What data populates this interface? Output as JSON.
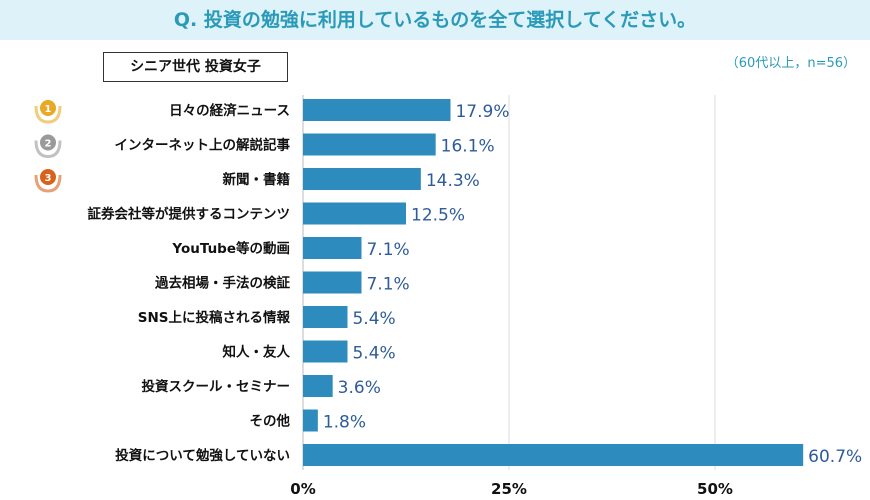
{
  "chart_data": {
    "type": "bar",
    "orientation": "horizontal",
    "title": "Q. 投資の勉強に利用しているものを全て選択してください。",
    "subtitle": "シニア世代 投資女子",
    "note": "（60代以上，n=56）",
    "categories": [
      "日々の経済ニュース",
      "インターネット上の解説記事",
      "新聞・書籍",
      "証券会社等が提供するコンテンツ",
      "YouTube等の動画",
      "過去相場・手法の検証",
      "SNS上に投稿される情報",
      "知人・友人",
      "投資スクール・セミナー",
      "その他",
      "投資について勉強していない"
    ],
    "values": [
      17.9,
      16.1,
      14.3,
      12.5,
      7.1,
      7.1,
      5.4,
      5.4,
      3.6,
      1.8,
      60.7
    ],
    "value_labels": [
      "17.9%",
      "16.1%",
      "14.3%",
      "12.5%",
      "7.1%",
      "7.1%",
      "5.4%",
      "5.4%",
      "3.6%",
      "1.8%",
      "60.7%"
    ],
    "xticks": [
      0,
      25,
      50
    ],
    "xtick_labels": [
      "0%",
      "25%",
      "50%"
    ],
    "xlim": [
      0,
      68
    ],
    "grid": true,
    "medals": [
      {
        "rank": "1",
        "color": "#e9a825"
      },
      {
        "rank": "2",
        "color": "#9a9a9a"
      },
      {
        "rank": "3",
        "color": "#d8621c"
      }
    ],
    "bar_color": "#2e8bbd",
    "label_color": "#2e5c9a"
  }
}
